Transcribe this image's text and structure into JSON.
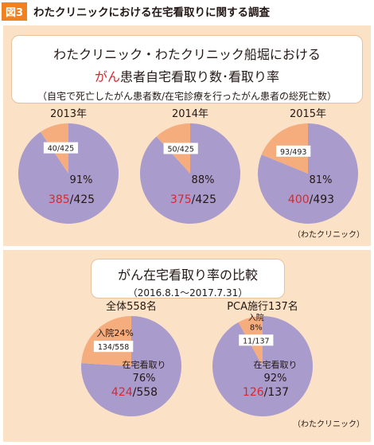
{
  "figure": {
    "badge": "図3",
    "title": "わたクリニックにおける在宅看取りに関する調査"
  },
  "top_panel": {
    "title_line1": "わたクリニック・わたクリニック船堀における",
    "title_line2_accent": "がん",
    "title_line2_rest": "患者自宅看取り数･看取り率",
    "title_line3": "（自宅で死亡したがん患者数/在宅診療を行ったがん患者の総死亡数）",
    "source": "（わたクリニック）"
  },
  "bottom_panel": {
    "title_line1": "がん在宅看取り率の比較",
    "title_line2": "（2016.8.1～2017.7.31）",
    "source": "（わたクリニック）"
  },
  "colors": {
    "home": "#a99bcc",
    "hospital": "#f5ad7e",
    "accent": "#d7282f",
    "panel": "#fbe2c6",
    "badge": "#f08020"
  },
  "chart_data": [
    {
      "type": "pie",
      "title": "2013年",
      "total": 425,
      "slices": [
        {
          "label": "",
          "value": 385,
          "percent": "91%",
          "fraction_num": "385",
          "fraction_den": "/425",
          "color": "#a99bcc"
        },
        {
          "label": "",
          "value": 40,
          "percent": "",
          "fraction": "40/425",
          "color": "#f5ad7e"
        }
      ]
    },
    {
      "type": "pie",
      "title": "2014年",
      "total": 425,
      "slices": [
        {
          "label": "",
          "value": 375,
          "percent": "88%",
          "fraction_num": "375",
          "fraction_den": "/425",
          "color": "#a99bcc"
        },
        {
          "label": "",
          "value": 50,
          "percent": "",
          "fraction": "50/425",
          "color": "#f5ad7e"
        }
      ]
    },
    {
      "type": "pie",
      "title": "2015年",
      "total": 493,
      "slices": [
        {
          "label": "",
          "value": 400,
          "percent": "81%",
          "fraction_num": "400",
          "fraction_den": "/493",
          "color": "#a99bcc"
        },
        {
          "label": "",
          "value": 93,
          "percent": "",
          "fraction": "93/493",
          "color": "#f5ad7e"
        }
      ]
    },
    {
      "type": "pie",
      "title": "全体558名",
      "total": 558,
      "slices": [
        {
          "label": "在宅看取り",
          "value": 424,
          "percent": "76%",
          "fraction_num": "424",
          "fraction_den": "/558",
          "color": "#a99bcc"
        },
        {
          "label": "入院24%",
          "value": 134,
          "percent": "",
          "fraction": "134/558",
          "color": "#f5ad7e"
        }
      ]
    },
    {
      "type": "pie",
      "title": "PCA施行137名",
      "total": 137,
      "slices": [
        {
          "label": "在宅看取り",
          "value": 126,
          "percent": "92%",
          "fraction_num": "126",
          "fraction_den": "/137",
          "color": "#a99bcc"
        },
        {
          "label": "入院",
          "sublabel": "8%",
          "value": 11,
          "percent": "",
          "fraction": "11/137",
          "color": "#f5ad7e"
        }
      ]
    }
  ]
}
